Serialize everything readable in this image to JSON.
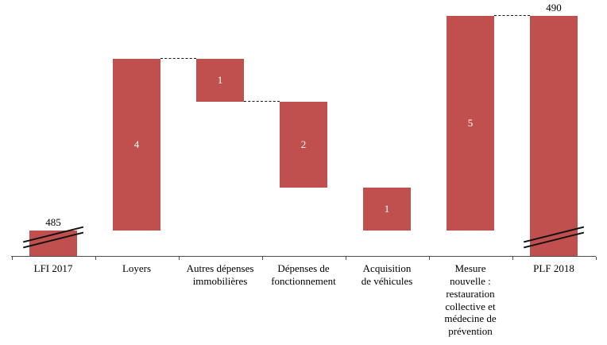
{
  "chart_data": {
    "type": "waterfall",
    "bar_color": "#c0504d",
    "connector_color": "#1a1a1a",
    "axis_color": "#4d4d4d",
    "baseline_value": 485,
    "start_value": 485,
    "end_value": 490,
    "axis_break": true,
    "connectors_after_step": [
      1,
      2,
      5
    ],
    "steps": [
      {
        "category": "LFI 2017",
        "category_lines": [
          "LFI 2017"
        ],
        "role": "total",
        "value": 485,
        "display_label": "485",
        "label_position": "above",
        "label_color": "#000000",
        "axis_break": true
      },
      {
        "category": "Loyers",
        "category_lines": [
          "Loyers"
        ],
        "role": "increase",
        "value": 4,
        "display_label": "4",
        "label_position": "inside",
        "label_color": "#ffffff",
        "axis_break": false
      },
      {
        "category": "Autres dépenses immobilières",
        "category_lines": [
          "Autres dépenses",
          "immobilières"
        ],
        "role": "decrease",
        "value": 1,
        "display_label": "1",
        "label_position": "inside",
        "label_color": "#ffffff",
        "axis_break": false
      },
      {
        "category": "Dépenses de fonctionnement",
        "category_lines": [
          "Dépenses de",
          "fonctionnement"
        ],
        "role": "decrease",
        "value": 2,
        "display_label": "2",
        "label_position": "inside",
        "label_color": "#ffffff",
        "axis_break": false
      },
      {
        "category": "Acquisition de véhicules",
        "category_lines": [
          "Acquisition",
          "de véhicules"
        ],
        "role": "decrease",
        "value": 1,
        "display_label": "1",
        "label_position": "inside",
        "label_color": "#ffffff",
        "axis_break": false
      },
      {
        "category": "Mesure nouvelle : restauration collective et médecine de prévention",
        "category_lines": [
          "Mesure",
          "nouvelle :",
          "restauration",
          "collective et",
          "médecine de",
          "prévention"
        ],
        "role": "increase",
        "value": 5,
        "display_label": "5",
        "label_position": "inside",
        "label_color": "#ffffff",
        "axis_break": false
      },
      {
        "category": "PLF 2018",
        "category_lines": [
          "PLF 2018"
        ],
        "role": "total",
        "value": 490,
        "display_label": "490",
        "label_position": "above",
        "label_color": "#000000",
        "axis_break": true
      }
    ]
  }
}
